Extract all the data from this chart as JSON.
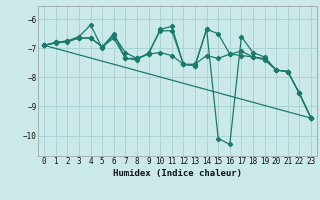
{
  "xlabel": "Humidex (Indice chaleur)",
  "xlim": [
    -0.5,
    23.5
  ],
  "ylim": [
    -10.7,
    -5.55
  ],
  "yticks": [
    -10,
    -9,
    -8,
    -7,
    -6
  ],
  "xticks": [
    0,
    1,
    2,
    3,
    4,
    5,
    6,
    7,
    8,
    9,
    10,
    11,
    12,
    13,
    14,
    15,
    16,
    17,
    18,
    19,
    20,
    21,
    22,
    23
  ],
  "bg_color": "#cce9e9",
  "grid_color": "#aad4d4",
  "line_color": "#1a7a6e",
  "lines": [
    {
      "x": [
        0,
        1,
        2,
        3,
        4,
        5,
        6,
        7,
        8,
        9,
        10,
        11,
        12,
        13,
        14,
        15,
        16,
        17,
        18,
        19,
        20,
        21,
        22,
        23
      ],
      "y": [
        -6.9,
        -6.8,
        -6.75,
        -6.6,
        -6.2,
        -7.0,
        -6.55,
        -7.15,
        -7.35,
        -7.2,
        -6.35,
        -6.25,
        -7.55,
        -7.6,
        -6.35,
        -10.1,
        -10.3,
        -6.6,
        -7.15,
        -7.3,
        -7.75,
        -7.8,
        -8.55,
        -9.4
      ]
    },
    {
      "x": [
        0,
        1,
        2,
        3,
        4,
        5,
        6,
        7,
        8,
        9,
        10,
        11,
        12,
        13,
        14,
        15,
        16,
        17,
        18,
        19,
        20,
        21,
        22,
        23
      ],
      "y": [
        -6.9,
        -6.8,
        -6.75,
        -6.65,
        -6.65,
        -6.95,
        -6.5,
        -7.35,
        -7.4,
        -7.15,
        -6.4,
        -6.4,
        -7.55,
        -7.6,
        -6.35,
        -6.5,
        -7.2,
        -7.1,
        -7.3,
        -7.35,
        -7.75,
        -7.8,
        -8.55,
        -9.4
      ]
    },
    {
      "x": [
        0,
        1,
        2,
        3,
        4,
        5,
        6,
        7,
        8,
        9,
        10,
        11,
        12,
        13,
        14,
        15,
        16,
        17,
        18,
        19,
        20,
        21,
        22,
        23
      ],
      "y": [
        -6.9,
        -6.82,
        -6.78,
        -6.65,
        -6.65,
        -6.95,
        -6.65,
        -7.35,
        -7.35,
        -7.2,
        -7.15,
        -7.25,
        -7.55,
        -7.55,
        -7.25,
        -7.35,
        -7.2,
        -7.25,
        -7.3,
        -7.4,
        -7.75,
        -7.8,
        -8.55,
        -9.4
      ]
    },
    {
      "x": [
        0,
        23
      ],
      "y": [
        -6.9,
        -9.4
      ]
    }
  ]
}
